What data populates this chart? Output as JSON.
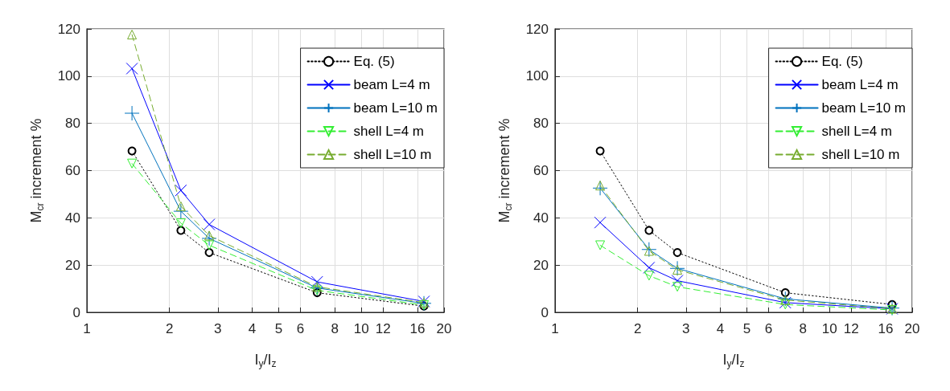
{
  "chart_data": [
    {
      "type": "line",
      "xlabel": "I$_{y}$/I$_{z}$",
      "ylabel": "M$_{cr}$ increment %",
      "log": "x",
      "xlim": [
        1,
        20
      ],
      "xticks": [
        1,
        2,
        3,
        4,
        5,
        6,
        8,
        10,
        12,
        16,
        20
      ],
      "ylim": [
        0,
        120
      ],
      "yticks": [
        0,
        20,
        40,
        60,
        80,
        100,
        120
      ],
      "grid": true,
      "legend": "top right",
      "x": [
        1.46,
        2.2,
        2.79,
        6.9,
        16.9
      ],
      "series": [
        {
          "name": "Eq. (5)",
          "color": "#000000",
          "marker": "circle",
          "line_style": "dotted",
          "values": [
            68.3,
            34.7,
            25.3,
            8.3,
            2.6
          ]
        },
        {
          "name": "beam L=4 m",
          "color": "#0000ff",
          "marker": "x",
          "line_style": "solid",
          "values": [
            103.2,
            51.6,
            37.2,
            12.9,
            4.6
          ]
        },
        {
          "name": "beam L=10 m",
          "color": "#0072bd",
          "marker": "plus",
          "line_style": "solid",
          "values": [
            84.3,
            42.8,
            31.3,
            10.3,
            3.8
          ]
        },
        {
          "name": "shell L=4 m",
          "color": "#33ee33",
          "marker": "triangle-down",
          "line_style": "dashed",
          "values": [
            63,
            37.7,
            28.4,
            9.3,
            3.1
          ]
        },
        {
          "name": "shell L=10 m",
          "color": "#77ac30",
          "marker": "triangle",
          "line_style": "dashed",
          "values": [
            117.6,
            44.9,
            32.5,
            10.8,
            4.1
          ]
        }
      ]
    },
    {
      "type": "line",
      "xlabel": "I$_{y}$/I$_{z}$",
      "ylabel": "M$_{cr}$ increment %",
      "log": "x",
      "xlim": [
        1,
        20
      ],
      "xticks": [
        1,
        2,
        3,
        4,
        5,
        6,
        8,
        10,
        12,
        16,
        20
      ],
      "ylim": [
        0,
        120
      ],
      "yticks": [
        0,
        20,
        40,
        60,
        80,
        100,
        120
      ],
      "grid": true,
      "legend": "top right",
      "x": [
        1.46,
        2.2,
        2.79,
        6.9,
        16.9
      ],
      "series": [
        {
          "name": "Eq. (5)",
          "color": "#000000",
          "marker": "circle",
          "line_style": "dotted",
          "values": [
            68.3,
            34.7,
            25.3,
            8.3,
            3.3
          ]
        },
        {
          "name": "beam L=4 m",
          "color": "#0000ff",
          "marker": "x",
          "line_style": "solid",
          "values": [
            38,
            18.9,
            13.4,
            4.1,
            1.5
          ]
        },
        {
          "name": "beam L=10 m",
          "color": "#0072bd",
          "marker": "plus",
          "line_style": "solid",
          "values": [
            52.6,
            26.6,
            18.6,
            5.7,
            1.8
          ]
        },
        {
          "name": "shell L=4 m",
          "color": "#33ee33",
          "marker": "triangle-down",
          "line_style": "dashed",
          "values": [
            28.4,
            15.5,
            10.8,
            3.3,
            1
          ]
        },
        {
          "name": "shell L=10 m",
          "color": "#77ac30",
          "marker": "triangle",
          "line_style": "dashed",
          "values": [
            53.7,
            26,
            18,
            5.2,
            1.5
          ]
        }
      ]
    }
  ]
}
